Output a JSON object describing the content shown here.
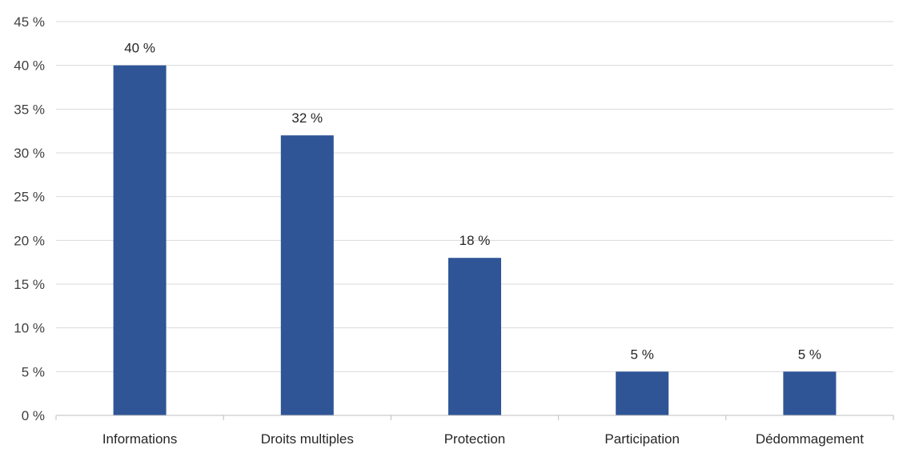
{
  "chart_data": {
    "type": "bar",
    "categories": [
      "Informations",
      "Droits multiples",
      "Protection",
      "Participation",
      "Dédommagement"
    ],
    "values": [
      40,
      32,
      18,
      5,
      5
    ],
    "data_labels": [
      "40 %",
      "32 %",
      "18 %",
      "5 %",
      "5 %"
    ],
    "y_ticks": [
      0,
      5,
      10,
      15,
      20,
      25,
      30,
      35,
      40,
      45
    ],
    "y_tick_labels": [
      "0 %",
      "5 %",
      "10 %",
      "15 %",
      "20 %",
      "25 %",
      "30 %",
      "35 %",
      "40 %",
      "45 %"
    ],
    "ylim": [
      0,
      45
    ],
    "grid": true,
    "legend": "none",
    "bar_color": "#2F5597",
    "grid_color": "#D9D9D9",
    "axis_color": "#BFBFBF"
  }
}
